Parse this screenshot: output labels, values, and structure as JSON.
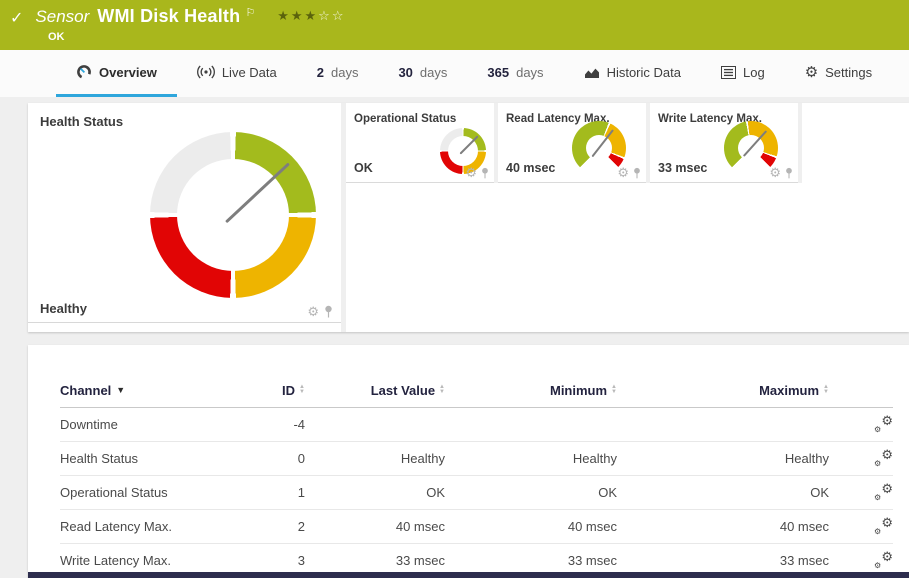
{
  "theme": {
    "header_bg": "#a9b71c",
    "accent_blue": "#2ea6dc",
    "gauge_green": "#a3bb1d",
    "gauge_yellow": "#eeb400",
    "gauge_red": "#e10505",
    "gauge_gray": "#ececec",
    "navy": "#2d2d4e"
  },
  "header": {
    "check_icon": "✓",
    "kind": "Sensor",
    "title": "WMI Disk Health",
    "flag_icon": "⚐",
    "status": "OK",
    "rating_filled": 3,
    "rating_total": 5
  },
  "tabs": {
    "overview": "Overview",
    "live_data": "Live Data",
    "d2_num": "2",
    "d2_word": "days",
    "d30_num": "30",
    "d30_word": "days",
    "d365_num": "365",
    "d365_word": "days",
    "historic": "Historic Data",
    "log": "Log",
    "settings": "Settings"
  },
  "gauges": {
    "main": {
      "title": "Health Status",
      "value": "Healthy",
      "needle_deg": 47
    },
    "operational": {
      "title": "Operational Status",
      "value": "OK",
      "needle_deg": 45
    },
    "read_latency": {
      "title": "Read Latency Max.",
      "value": "40 msec",
      "needle_deg": 38,
      "segments": {
        "green_end": 158,
        "yellow_end": 247,
        "red_end": 270
      }
    },
    "write_latency": {
      "title": "Write Latency Max.",
      "value": "33 msec",
      "needle_deg": 42,
      "segments": {
        "green_end": 126,
        "yellow_end": 245,
        "red_end": 270
      }
    }
  },
  "table": {
    "headers": {
      "channel": "Channel",
      "id": "ID",
      "last_value": "Last Value",
      "minimum": "Minimum",
      "maximum": "Maximum"
    },
    "rows": [
      {
        "channel": "Downtime",
        "id": "-4",
        "last": "",
        "min": "",
        "max": ""
      },
      {
        "channel": "Health Status",
        "id": "0",
        "last": "Healthy",
        "min": "Healthy",
        "max": "Healthy"
      },
      {
        "channel": "Operational Status",
        "id": "1",
        "last": "OK",
        "min": "OK",
        "max": "OK"
      },
      {
        "channel": "Read Latency Max.",
        "id": "2",
        "last": "40 msec",
        "min": "40 msec",
        "max": "40 msec"
      },
      {
        "channel": "Write Latency Max.",
        "id": "3",
        "last": "33 msec",
        "min": "33 msec",
        "max": "33 msec"
      }
    ]
  }
}
